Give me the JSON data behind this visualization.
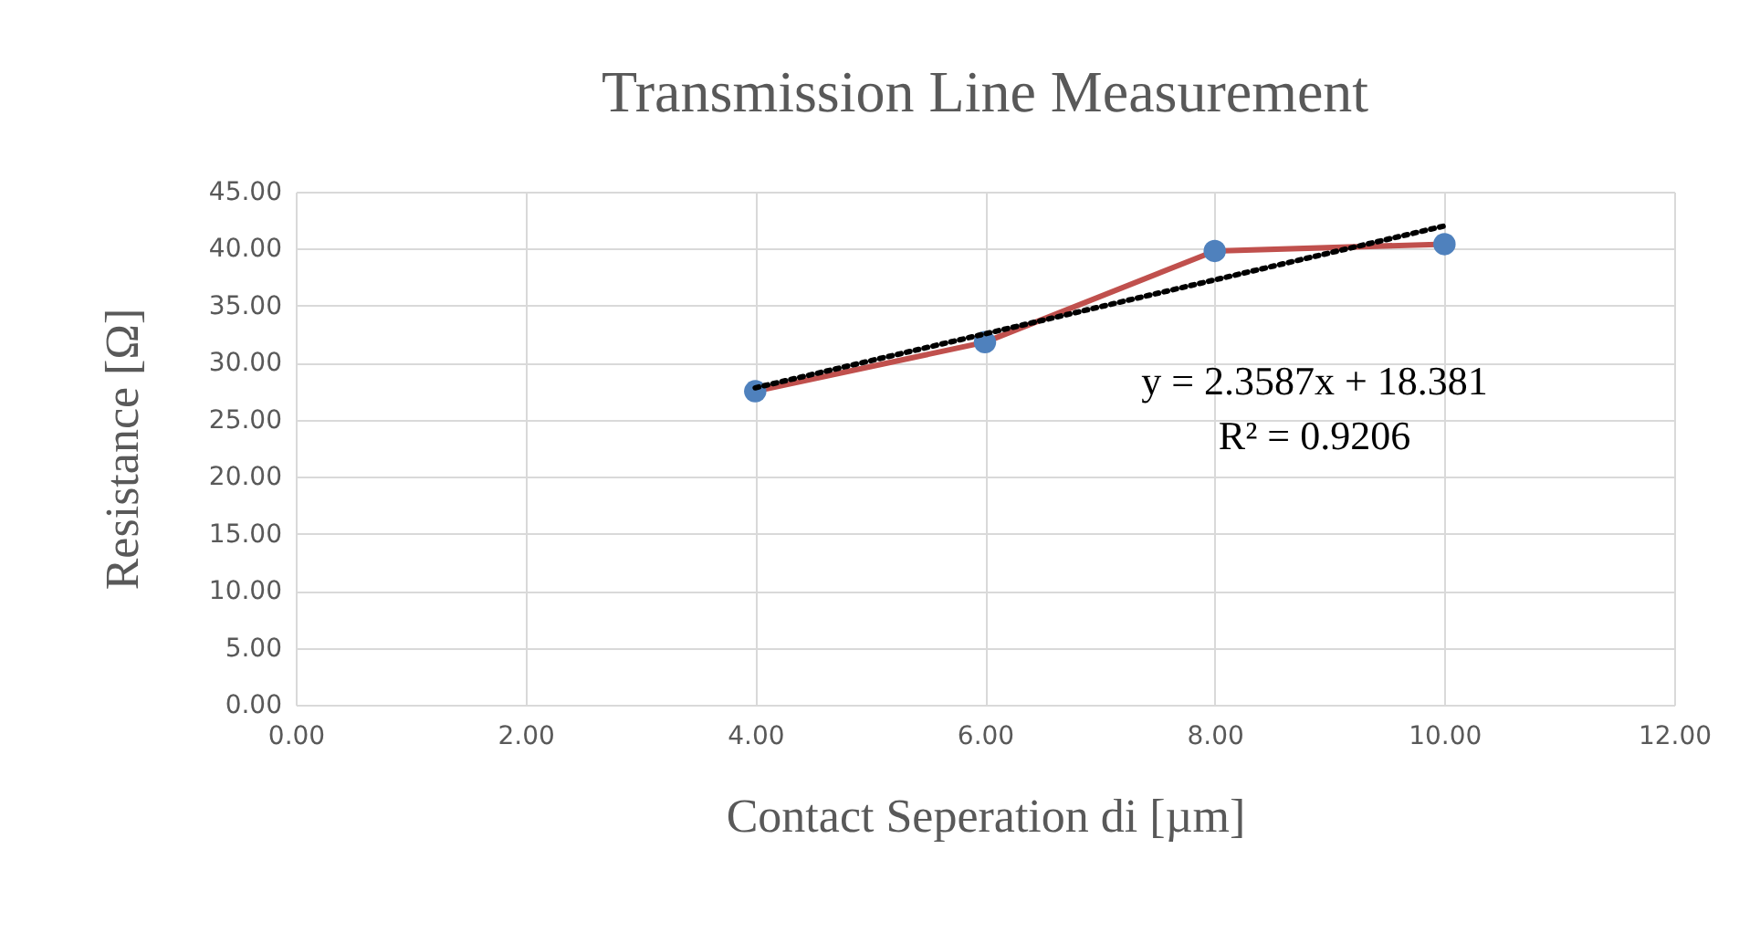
{
  "chart_data": {
    "type": "line",
    "title": "Transmission Line Measurement",
    "xlabel": "Contact Seperation di [µm]",
    "ylabel": "Resistance [Ω]",
    "x": [
      4,
      6,
      8,
      10
    ],
    "series": [
      {
        "type": "line",
        "color": "#c0504d",
        "values": [
          27.5,
          31.8,
          39.8,
          40.4
        ],
        "marker": "none",
        "line_style": "solid"
      },
      {
        "type": "scatter",
        "color": "#4f81bd",
        "values": [
          27.5,
          31.8,
          39.8,
          40.4
        ],
        "marker": "circle"
      },
      {
        "type": "line",
        "color": "#000000",
        "x": [
          4,
          10
        ],
        "values": [
          27.8,
          42.0
        ],
        "marker": "none",
        "line_style": "dotted"
      }
    ],
    "annotations": [
      "y = 2.3587x + 18.381",
      "R² = 0.9206"
    ],
    "xlim": [
      0,
      12
    ],
    "ylim": [
      0,
      45
    ],
    "xticks": [
      {
        "value": 0,
        "label": "0.00"
      },
      {
        "value": 2,
        "label": "2.00"
      },
      {
        "value": 4,
        "label": "4.00"
      },
      {
        "value": 6,
        "label": "6.00"
      },
      {
        "value": 8,
        "label": "8.00"
      },
      {
        "value": 10,
        "label": "10.00"
      },
      {
        "value": 12,
        "label": "12.00"
      }
    ],
    "yticks": [
      {
        "value": 0,
        "label": "0.00"
      },
      {
        "value": 5,
        "label": "5.00"
      },
      {
        "value": 10,
        "label": "10.00"
      },
      {
        "value": 15,
        "label": "15.00"
      },
      {
        "value": 20,
        "label": "20.00"
      },
      {
        "value": 25,
        "label": "25.00"
      },
      {
        "value": 30,
        "label": "30.00"
      },
      {
        "value": 35,
        "label": "35.00"
      },
      {
        "value": 40,
        "label": "40.00"
      },
      {
        "value": 45,
        "label": "45.00"
      }
    ],
    "grid": true
  }
}
